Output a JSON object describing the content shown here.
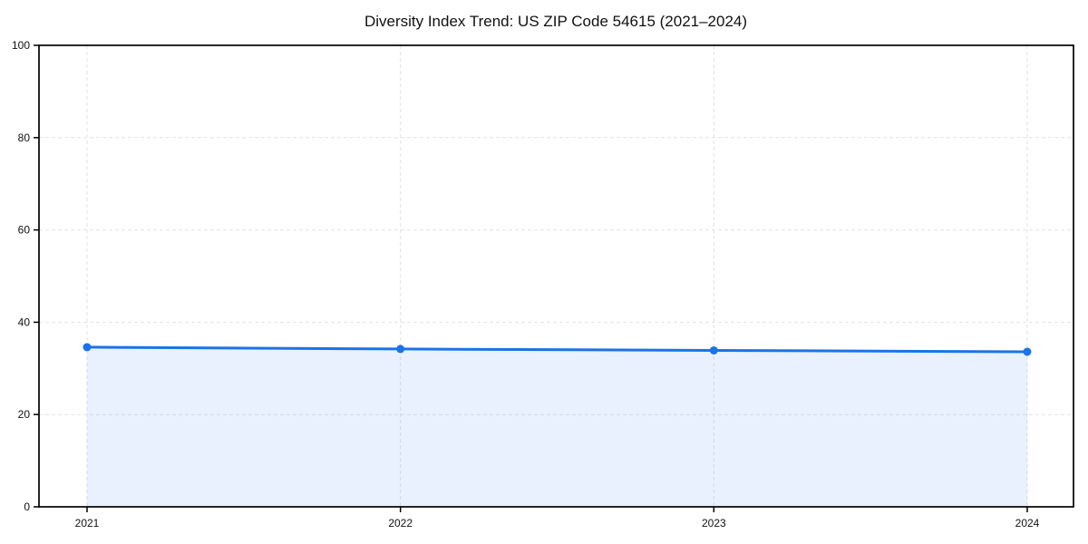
{
  "page": {
    "background": "#ffffff"
  },
  "chart_data": {
    "type": "area",
    "title": "Diversity Index Trend: US ZIP Code 54615 (2021–2024)",
    "x": [
      "2021",
      "2022",
      "2023",
      "2024"
    ],
    "series": [
      {
        "name": "Diversity Index",
        "values": [
          34.6,
          34.2,
          33.9,
          33.6
        ]
      }
    ],
    "xlabel": "",
    "ylabel": "",
    "ylim": [
      0,
      100
    ],
    "yticks": [
      0,
      20,
      40,
      60,
      80,
      100
    ],
    "grid": true,
    "grid_style": "dashed",
    "legend_position": "none",
    "colors": {
      "line": "#1a73e8",
      "marker": "#1a73e8",
      "area_fill": "#e8f0fc",
      "grid": "#e2e2e2",
      "axis": "#000000",
      "text": "#111111",
      "background": "#ffffff"
    }
  }
}
